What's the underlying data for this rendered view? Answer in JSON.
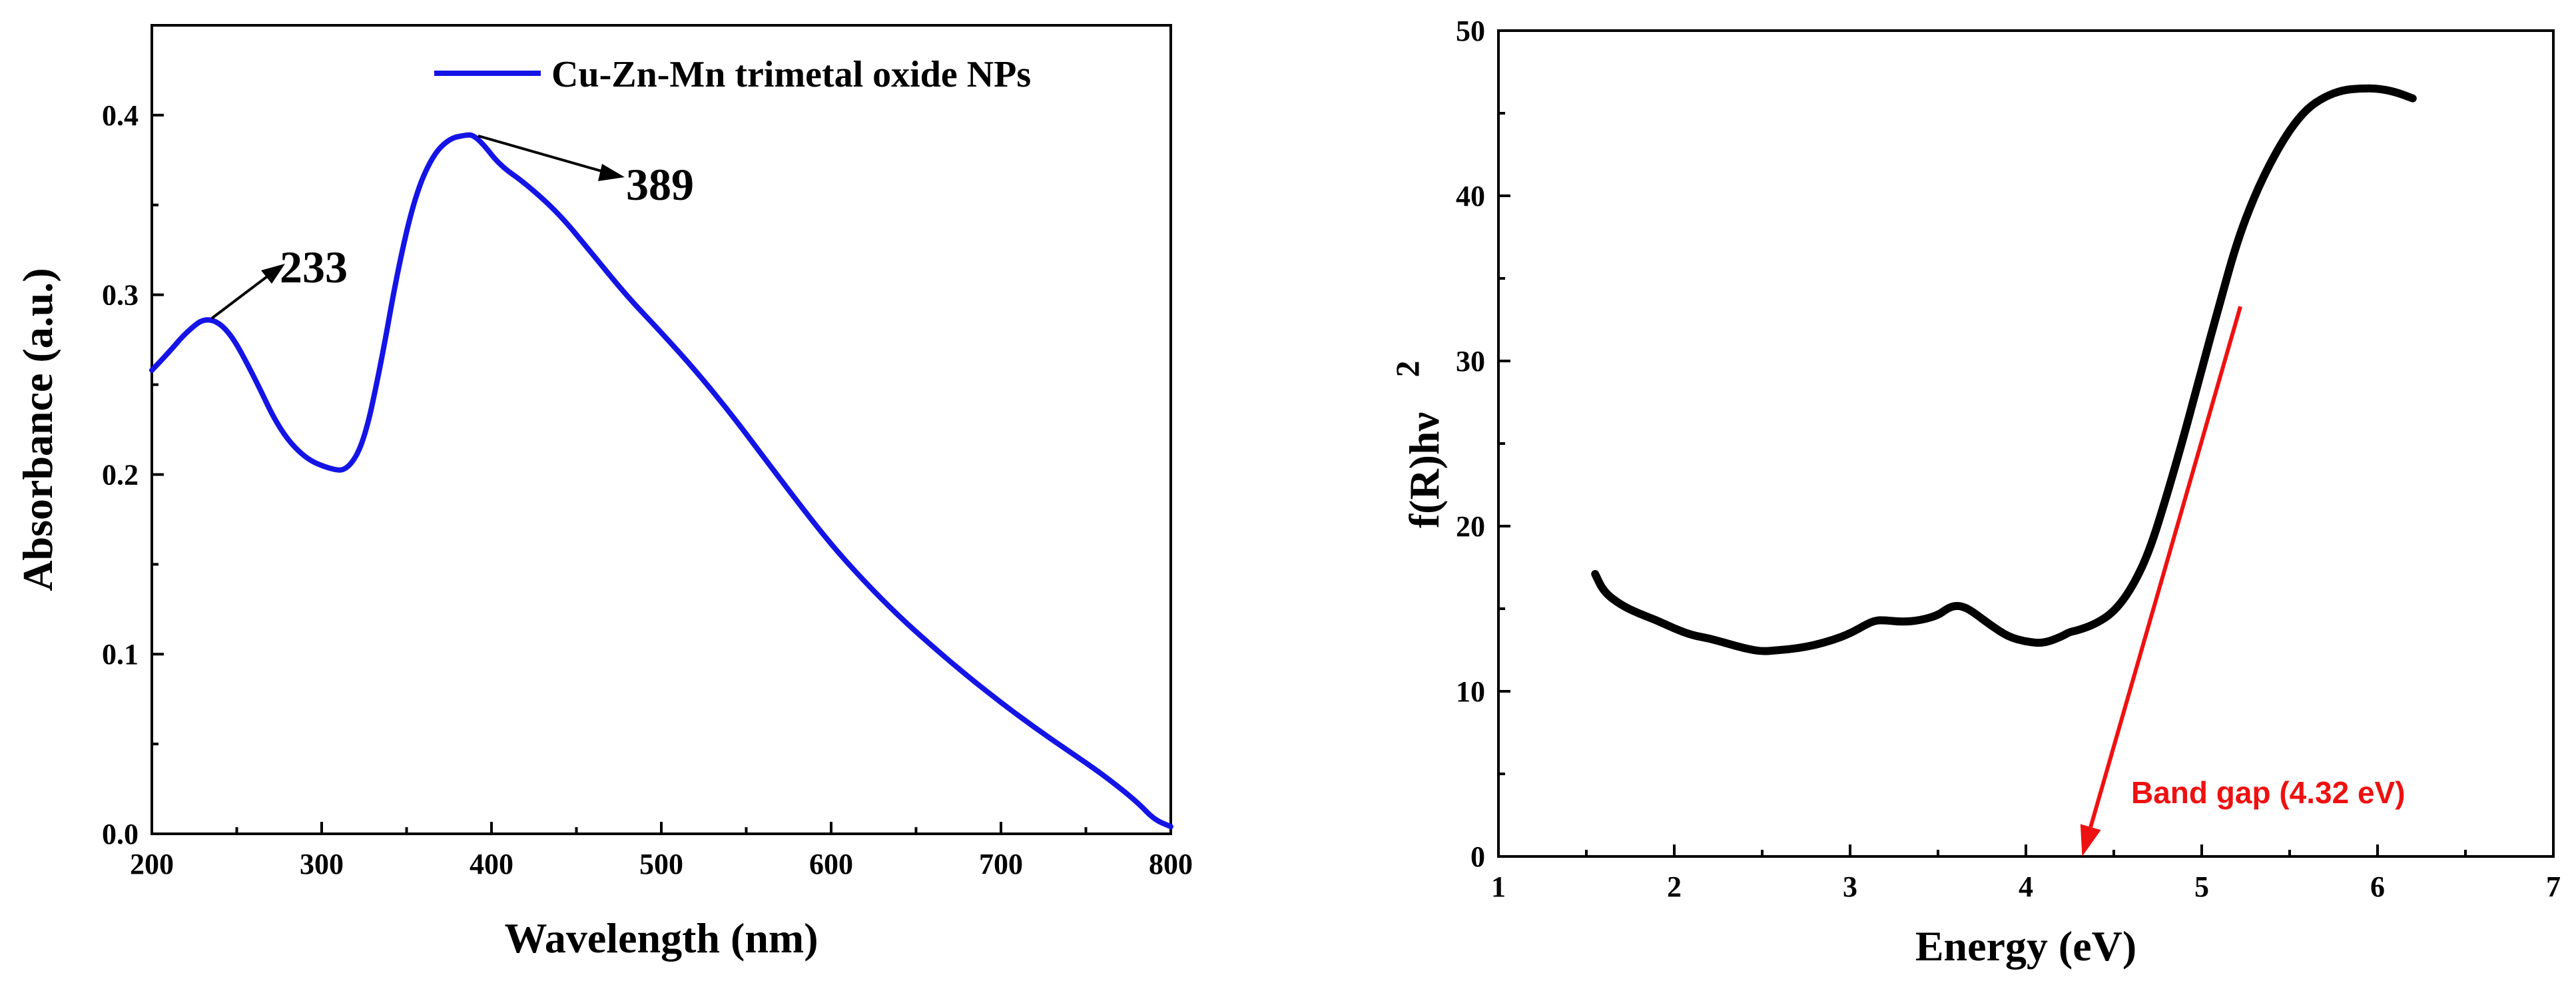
{
  "chart_data": [
    {
      "type": "line",
      "title": "",
      "xlabel": "Wavelength (nm)",
      "ylabel": "Absorbance (a.u.)",
      "xlim": [
        200,
        800
      ],
      "ylim": [
        0,
        0.45
      ],
      "xticks": [
        200,
        300,
        400,
        500,
        600,
        700,
        800
      ],
      "xtick_labels": [
        "200",
        "300",
        "400",
        "500",
        "600",
        "700",
        "800"
      ],
      "yticks": [
        0.0,
        0.1,
        0.2,
        0.3,
        0.4
      ],
      "ytick_labels": [
        "0.0",
        "0.1",
        "0.2",
        "0.3",
        "0.4"
      ],
      "grid": false,
      "legend": {
        "placement": "top-right",
        "entries": [
          "Cu-Zn-Mn trimetal oxide NPs"
        ]
      },
      "series": [
        {
          "name": "Cu-Zn-Mn trimetal oxide NPs",
          "color": "#1414e6",
          "x": [
            200,
            210,
            220,
            232,
            245,
            260,
            275,
            290,
            305,
            315,
            325,
            335,
            345,
            355,
            365,
            375,
            385,
            389,
            395,
            405,
            420,
            440,
            460,
            480,
            500,
            520,
            540,
            560,
            580,
            600,
            620,
            640,
            660,
            680,
            700,
            720,
            740,
            760,
            780,
            790,
            800
          ],
          "y": [
            0.258,
            0.268,
            0.279,
            0.288,
            0.281,
            0.255,
            0.225,
            0.209,
            0.203,
            0.202,
            0.218,
            0.262,
            0.315,
            0.355,
            0.377,
            0.387,
            0.389,
            0.389,
            0.384,
            0.372,
            0.362,
            0.345,
            0.322,
            0.299,
            0.279,
            0.258,
            0.235,
            0.21,
            0.185,
            0.161,
            0.14,
            0.121,
            0.104,
            0.088,
            0.073,
            0.059,
            0.046,
            0.033,
            0.018,
            0.008,
            0.004
          ]
        }
      ],
      "annotations": [
        {
          "text": "233",
          "x": 233,
          "y": 0.288
        },
        {
          "text": "389",
          "x": 389,
          "y": 0.389
        }
      ]
    },
    {
      "type": "line",
      "title": "",
      "xlabel": "Energy (eV)",
      "ylabel_main": "f(R)hν",
      "ylabel_sup": "2",
      "xlim": [
        1,
        7
      ],
      "ylim": [
        0,
        50
      ],
      "xticks": [
        1,
        2,
        3,
        4,
        5,
        6,
        7
      ],
      "xtick_labels": [
        "1",
        "2",
        "3",
        "4",
        "5",
        "6",
        "7"
      ],
      "yticks": [
        0,
        10,
        20,
        30,
        40,
        50
      ],
      "ytick_labels": [
        "0",
        "10",
        "20",
        "30",
        "40",
        "50"
      ],
      "grid": false,
      "series": [
        {
          "name": "f(R)hν²",
          "color": "#000000",
          "x": [
            1.55,
            1.6,
            1.7,
            1.8,
            1.9,
            2.0,
            2.1,
            2.2,
            2.3,
            2.4,
            2.5,
            2.6,
            2.7,
            2.8,
            2.9,
            3.0,
            3.1,
            3.15,
            3.2,
            3.3,
            3.4,
            3.5,
            3.55,
            3.6,
            3.65,
            3.7,
            3.8,
            3.9,
            4.0,
            4.1,
            4.2,
            4.25,
            4.3,
            4.4,
            4.5,
            4.6,
            4.7,
            4.8,
            4.9,
            5.0,
            5.1,
            5.2,
            5.3,
            5.4,
            5.5,
            5.6,
            5.7,
            5.8,
            5.9,
            6.0,
            6.1,
            6.2
          ],
          "y": [
            17.1,
            16.0,
            15.2,
            14.7,
            14.3,
            13.8,
            13.4,
            13.2,
            12.9,
            12.6,
            12.4,
            12.5,
            12.6,
            12.8,
            13.1,
            13.5,
            14.1,
            14.3,
            14.3,
            14.2,
            14.3,
            14.6,
            15.0,
            15.2,
            15.1,
            14.8,
            14.0,
            13.3,
            13.0,
            12.9,
            13.3,
            13.6,
            13.7,
            14.1,
            14.8,
            16.2,
            18.4,
            21.8,
            25.5,
            29.5,
            33.4,
            37.2,
            40.0,
            42.2,
            44.0,
            45.3,
            46.0,
            46.4,
            46.5,
            46.5,
            46.3,
            45.9
          ]
        }
      ],
      "fit_line": {
        "color": "#ee1111",
        "from": [
          5.22,
          33.3
        ],
        "to": [
          4.32,
          0.0
        ]
      },
      "annotations": [
        {
          "text": "Band gap (4.32 eV)",
          "x": 4.32,
          "y": 0.0,
          "color": "#ee1111"
        }
      ]
    }
  ]
}
